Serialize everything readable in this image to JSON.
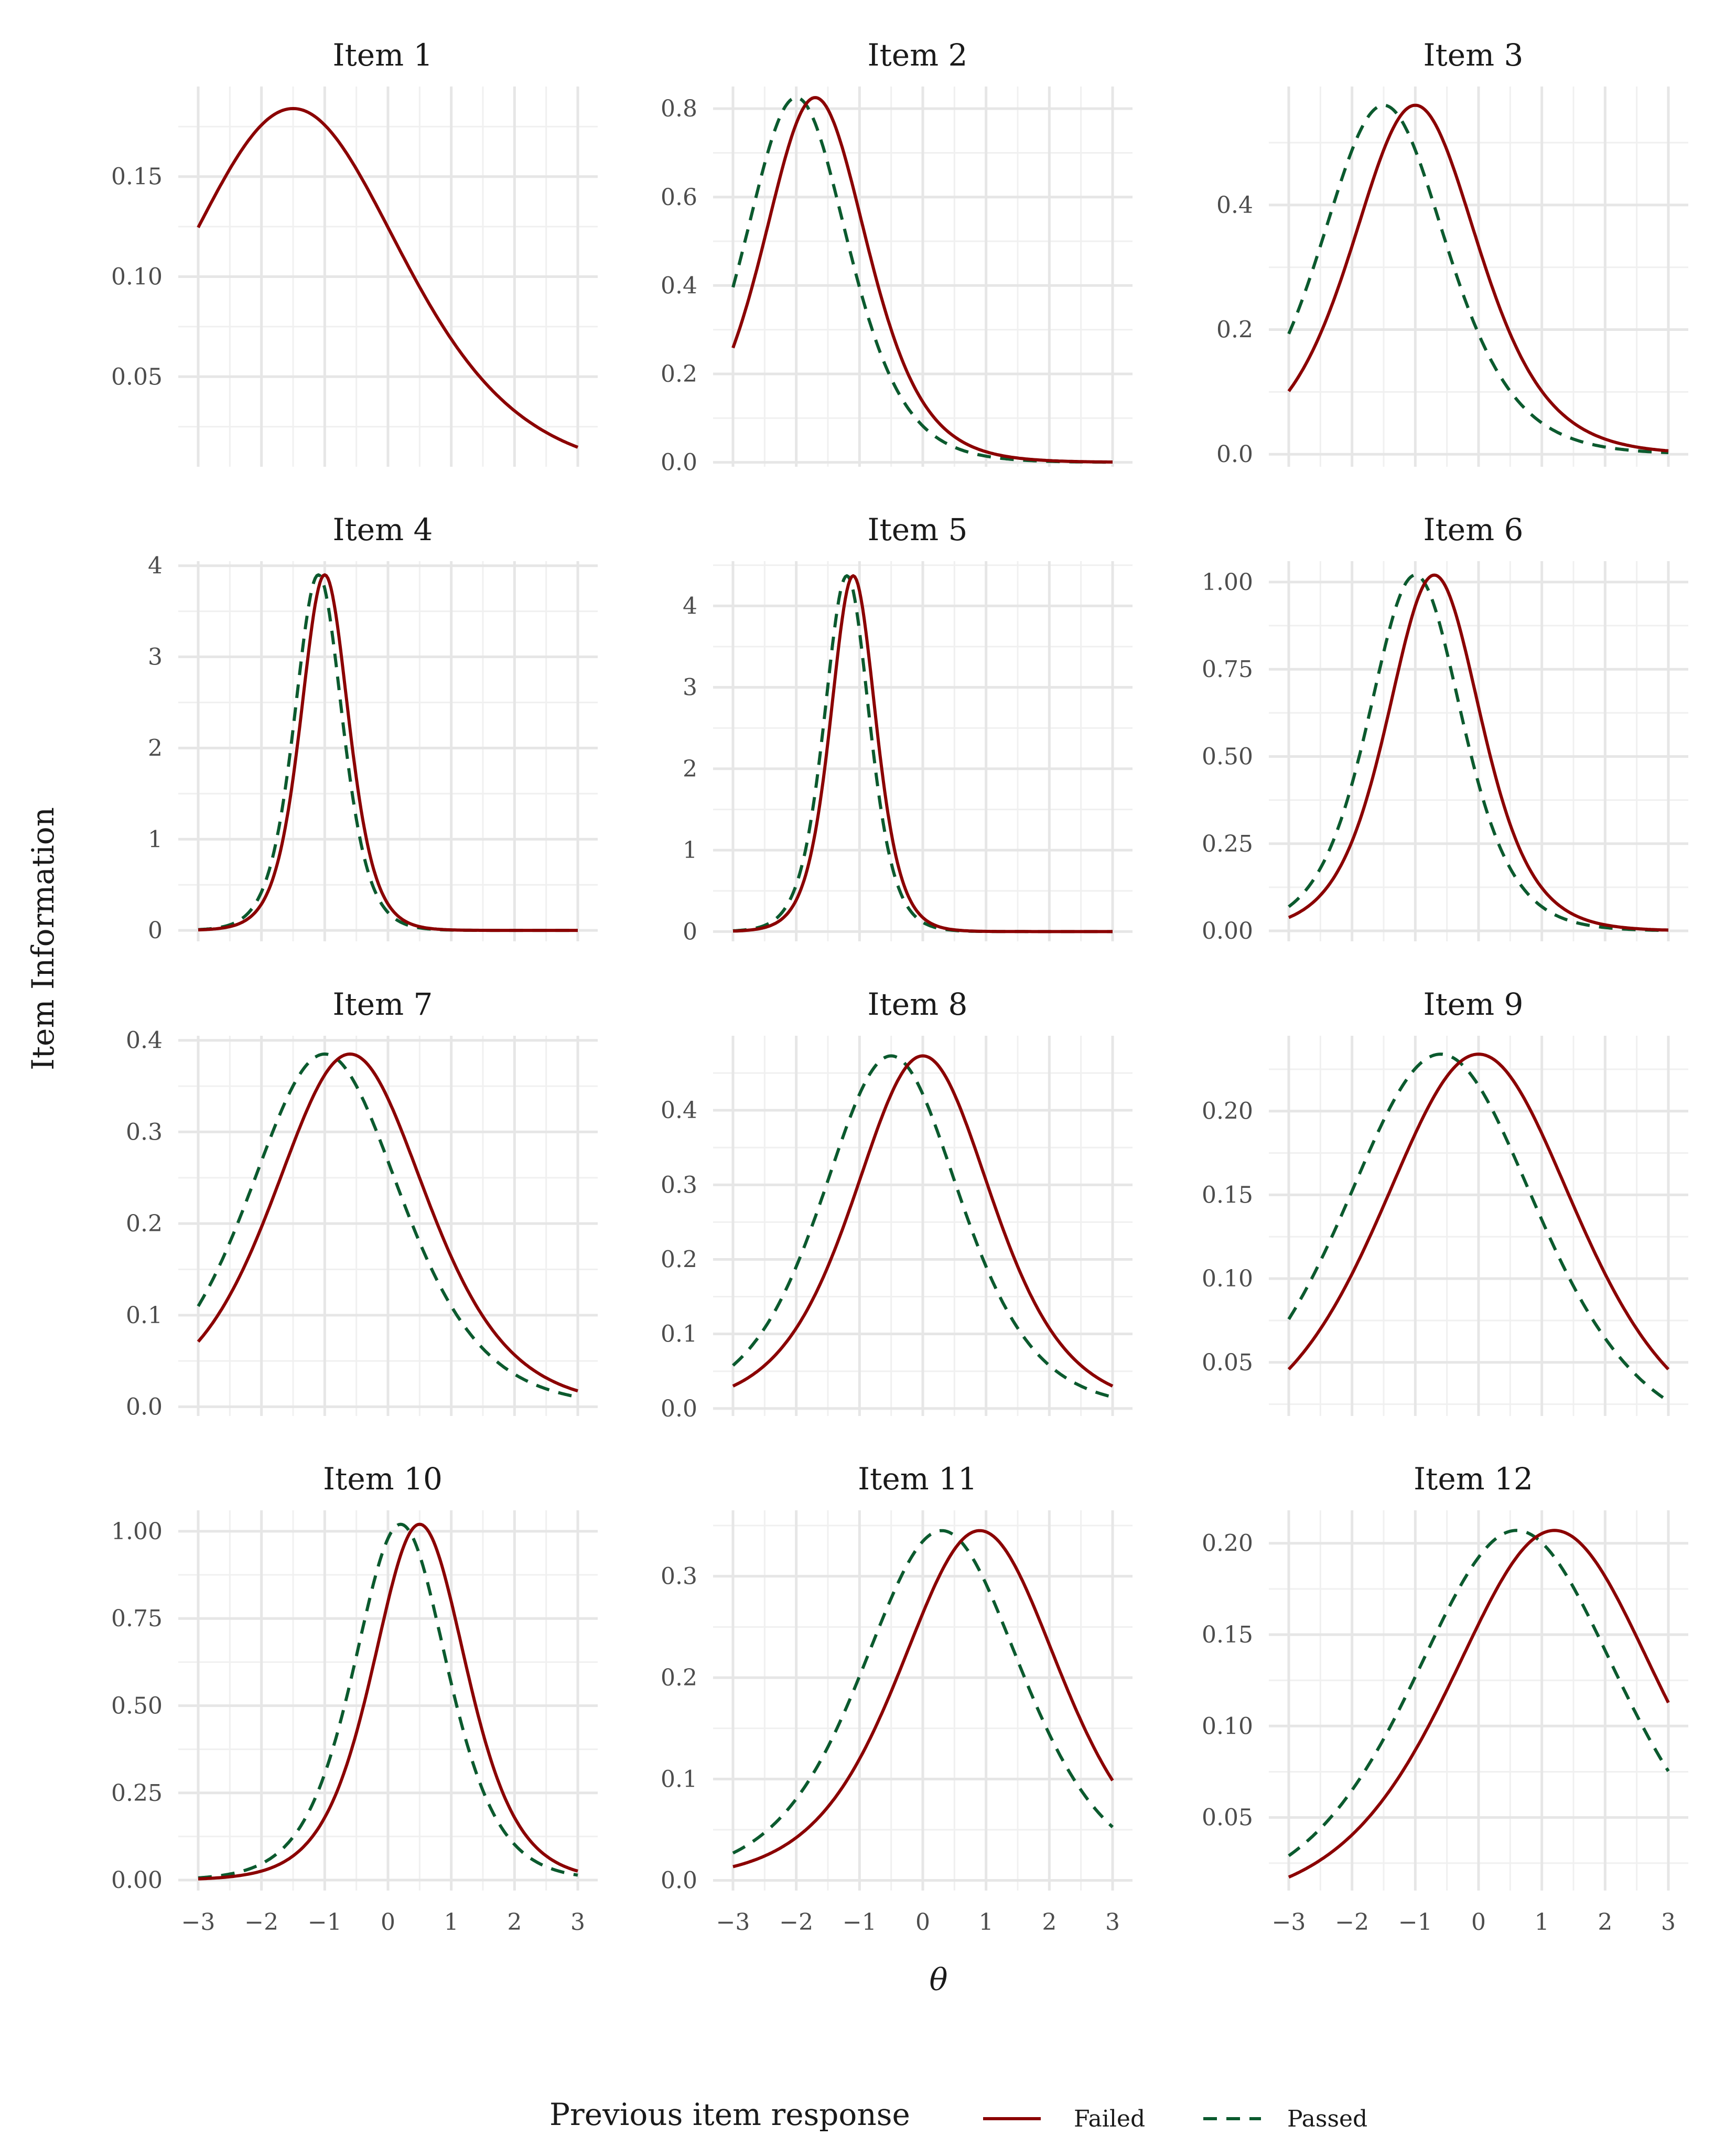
{
  "chart_data": {
    "type": "line",
    "layout": "facet-grid 4x3",
    "xlabel": "θ",
    "ylabel": "Item Information",
    "xlim": [
      -3,
      3
    ],
    "x_ticks": [
      -3,
      -2,
      -1,
      0,
      1,
      2,
      3
    ],
    "x_tick_labels": [
      "−3",
      "−2",
      "−1",
      "0",
      "1",
      "2",
      "3"
    ],
    "grid": true,
    "legend": {
      "title": "Previous item response",
      "placement": "bottom",
      "entries": [
        {
          "name": "Failed",
          "color": "#8b0000",
          "dash": "solid"
        },
        {
          "name": "Passed",
          "color": "#0b5a2e",
          "dash": "dashed"
        }
      ]
    },
    "panels": [
      {
        "title": "Item 1",
        "ylim": [
          0.005,
          0.195
        ],
        "y_ticks": [
          "0.05",
          "0.10",
          "0.15"
        ],
        "series": [
          {
            "name": "Failed",
            "a": 0.86,
            "b": -1.5,
            "peak": 0.184
          }
        ]
      },
      {
        "title": "Item 2",
        "ylim": [
          -0.01,
          0.85
        ],
        "y_ticks": [
          "0.0",
          "0.2",
          "0.4",
          "0.6",
          "0.8"
        ],
        "series": [
          {
            "name": "Failed",
            "a": 1.82,
            "b": -1.7,
            "peak": 0.825
          },
          {
            "name": "Passed",
            "a": 1.82,
            "b": -2.0,
            "peak": 0.825
          }
        ]
      },
      {
        "title": "Item 3",
        "ylim": [
          -0.02,
          0.59
        ],
        "y_ticks": [
          "0.0",
          "0.2",
          "0.4"
        ],
        "series": [
          {
            "name": "Failed",
            "a": 1.5,
            "b": -1.0,
            "peak": 0.56
          },
          {
            "name": "Passed",
            "a": 1.5,
            "b": -1.5,
            "peak": 0.56
          }
        ]
      },
      {
        "title": "Item 4",
        "ylim": [
          -0.12,
          4.05
        ],
        "y_ticks": [
          "0",
          "1",
          "2",
          "3",
          "4"
        ],
        "series": [
          {
            "name": "Failed",
            "a": 3.95,
            "b": -1.0,
            "peak": 3.9
          },
          {
            "name": "Passed",
            "a": 3.95,
            "b": -1.1,
            "peak": 3.9
          }
        ]
      },
      {
        "title": "Item 5",
        "ylim": [
          -0.12,
          4.55
        ],
        "y_ticks": [
          "0",
          "1",
          "2",
          "3",
          "4"
        ],
        "series": [
          {
            "name": "Failed",
            "a": 4.18,
            "b": -1.1,
            "peak": 4.37
          },
          {
            "name": "Passed",
            "a": 4.18,
            "b": -1.2,
            "peak": 4.37
          }
        ]
      },
      {
        "title": "Item 6",
        "ylim": [
          -0.03,
          1.06
        ],
        "y_ticks": [
          "0.00",
          "0.25",
          "0.50",
          "0.75",
          "1.00"
        ],
        "series": [
          {
            "name": "Failed",
            "a": 2.02,
            "b": -0.7,
            "peak": 1.02
          },
          {
            "name": "Passed",
            "a": 2.02,
            "b": -1.0,
            "peak": 1.02
          }
        ]
      },
      {
        "title": "Item 7",
        "ylim": [
          -0.01,
          0.405
        ],
        "y_ticks": [
          "0.0",
          "0.1",
          "0.2",
          "0.3",
          "0.4"
        ],
        "series": [
          {
            "name": "Failed",
            "a": 1.24,
            "b": -0.6,
            "peak": 0.385
          },
          {
            "name": "Passed",
            "a": 1.24,
            "b": -1.0,
            "peak": 0.385
          }
        ]
      },
      {
        "title": "Item 8",
        "ylim": [
          -0.01,
          0.5
        ],
        "y_ticks": [
          "0.0",
          "0.1",
          "0.2",
          "0.3",
          "0.4"
        ],
        "series": [
          {
            "name": "Failed",
            "a": 1.37,
            "b": 0.0,
            "peak": 0.473
          },
          {
            "name": "Passed",
            "a": 1.37,
            "b": -0.5,
            "peak": 0.473
          }
        ]
      },
      {
        "title": "Item 9",
        "ylim": [
          0.018,
          0.245
        ],
        "y_ticks": [
          "0.05",
          "0.10",
          "0.15",
          "0.20"
        ],
        "series": [
          {
            "name": "Failed",
            "a": 0.97,
            "b": 0.0,
            "peak": 0.234
          },
          {
            "name": "Passed",
            "a": 0.97,
            "b": -0.6,
            "peak": 0.234
          }
        ]
      },
      {
        "title": "Item 10",
        "ylim": [
          -0.03,
          1.06
        ],
        "y_ticks": [
          "0.00",
          "0.25",
          "0.50",
          "0.75",
          "1.00"
        ],
        "series": [
          {
            "name": "Failed",
            "a": 2.02,
            "b": 0.5,
            "peak": 1.02
          },
          {
            "name": "Passed",
            "a": 2.02,
            "b": 0.2,
            "peak": 1.02
          }
        ]
      },
      {
        "title": "Item 11",
        "ylim": [
          -0.01,
          0.365
        ],
        "y_ticks": [
          "0.0",
          "0.1",
          "0.2",
          "0.3"
        ],
        "series": [
          {
            "name": "Failed",
            "a": 1.18,
            "b": 0.9,
            "peak": 0.345
          },
          {
            "name": "Passed",
            "a": 1.18,
            "b": 0.3,
            "peak": 0.345
          }
        ]
      },
      {
        "title": "Item 12",
        "ylim": [
          0.01,
          0.218
        ],
        "y_ticks": [
          "0.05",
          "0.10",
          "0.15",
          "0.20"
        ],
        "series": [
          {
            "name": "Failed",
            "a": 0.91,
            "b": 1.2,
            "peak": 0.207
          },
          {
            "name": "Passed",
            "a": 0.91,
            "b": 0.6,
            "peak": 0.207
          }
        ]
      }
    ]
  }
}
